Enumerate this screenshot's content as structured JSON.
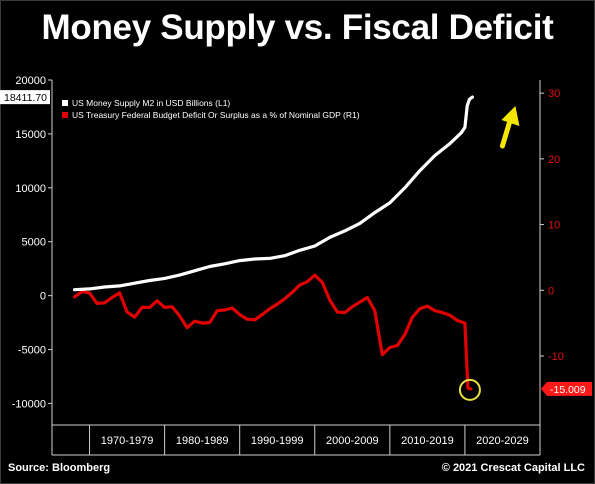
{
  "header": {
    "title": "Money Supply vs. Fiscal Deficit"
  },
  "footer": {
    "source": "Source: Bloomberg",
    "copyright": "© 2021 Crescat Capital LLC"
  },
  "colors": {
    "m2": "#ffffff",
    "deficit": "#e00000",
    "arrow": "#f5e600",
    "circle": "#e8e040",
    "right_axis": "#e01010"
  },
  "chart_data": {
    "type": "line",
    "categories": [
      "1970-1979",
      "1980-1989",
      "1990-1999",
      "2000-2009",
      "2010-2019",
      "2020-2029"
    ],
    "left_axis": {
      "ylim": [
        -12000,
        20000
      ],
      "ticks": [
        "20000",
        "15000",
        "10000",
        "5000",
        "0",
        "-5000",
        "-10000"
      ]
    },
    "right_axis": {
      "ylim": [
        -20.5,
        32
      ],
      "ticks": [
        "30",
        "20",
        "10",
        "0",
        "-10"
      ]
    },
    "last_value_left": "18411.70",
    "last_value_right": "-15.009",
    "legend_position": "top-left",
    "grid": false,
    "series": [
      {
        "name": "US Money Supply M2 in USD Billions (L1)",
        "axis": "left",
        "x": [
          1968,
          1970,
          1972,
          1974,
          1976,
          1978,
          1980,
          1982,
          1984,
          1986,
          1988,
          1990,
          1992,
          1994,
          1996,
          1998,
          2000,
          2002,
          2004,
          2006,
          2008,
          2010,
          2012,
          2014,
          2016,
          2018,
          2019.5,
          2020.0,
          2020.3,
          2020.6,
          2021.0
        ],
        "values": [
          550,
          620,
          800,
          900,
          1150,
          1400,
          1600,
          1900,
          2300,
          2700,
          2950,
          3250,
          3400,
          3450,
          3700,
          4200,
          4600,
          5400,
          6000,
          6700,
          7700,
          8600,
          10000,
          11600,
          13000,
          14100,
          15100,
          15600,
          17600,
          18200,
          18411.7
        ]
      },
      {
        "name": "US Treasury Federal Budget Deficit Or Surplus as a % of Nominal GDP (R1)",
        "axis": "right",
        "x": [
          1968,
          1969,
          1970,
          1971,
          1972,
          1973,
          1974,
          1975,
          1976,
          1977,
          1978,
          1979,
          1980,
          1981,
          1982,
          1983,
          1984,
          1985,
          1986,
          1987,
          1988,
          1989,
          1990,
          1991,
          1992,
          1993,
          1994,
          1995,
          1996,
          1997,
          1998,
          1999,
          2000,
          2001,
          2002,
          2003,
          2004,
          2005,
          2006,
          2007,
          2008,
          2009,
          2010,
          2011,
          2012,
          2013,
          2014,
          2015,
          2016,
          2017,
          2018,
          2019,
          2020,
          2020.4,
          2020.8
        ],
        "values": [
          -1.0,
          -0.2,
          -0.4,
          -2.0,
          -1.9,
          -1.1,
          -0.4,
          -3.3,
          -4.1,
          -2.6,
          -2.6,
          -1.6,
          -2.6,
          -2.5,
          -3.9,
          -5.7,
          -4.7,
          -5.0,
          -4.9,
          -3.1,
          -3.0,
          -2.7,
          -3.7,
          -4.4,
          -4.5,
          -3.7,
          -2.8,
          -2.1,
          -1.3,
          -0.3,
          0.8,
          1.3,
          2.3,
          1.2,
          -1.5,
          -3.3,
          -3.4,
          -2.5,
          -1.8,
          -1.1,
          -3.1,
          -9.8,
          -8.7,
          -8.4,
          -6.7,
          -4.1,
          -2.8,
          -2.4,
          -3.1,
          -3.4,
          -3.8,
          -4.6,
          -5.0,
          -14.9,
          -15.0
        ]
      }
    ]
  }
}
